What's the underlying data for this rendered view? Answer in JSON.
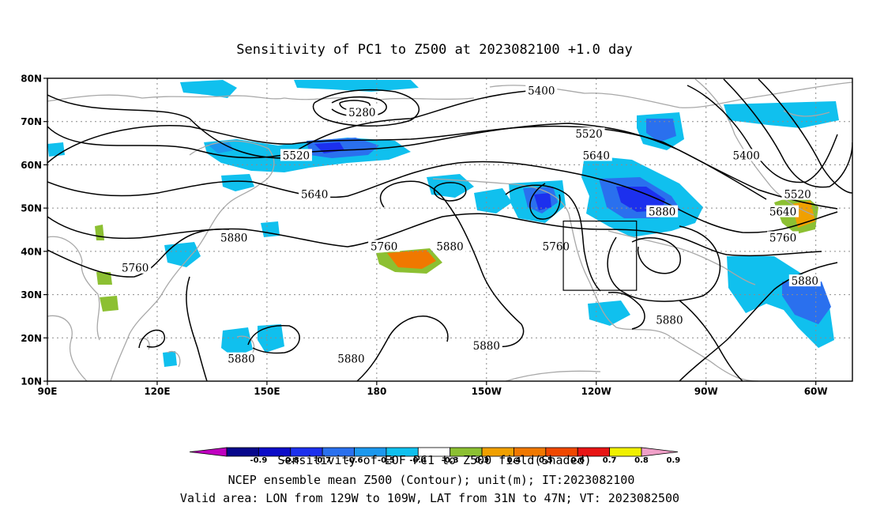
{
  "title": "Sensitivity of PC1 to Z500 at 2023082100 +1.0 day",
  "colors": {
    "coast": "#a8a8a8",
    "contour": "#000000",
    "grid": "#8c8c8c"
  },
  "map": {
    "lon_range": [
      90,
      310
    ],
    "lat_range": [
      10,
      80
    ],
    "lon_ticks": [
      {
        "lon": 90,
        "label": "90E"
      },
      {
        "lon": 120,
        "label": "120E"
      },
      {
        "lon": 150,
        "label": "150E"
      },
      {
        "lon": 180,
        "label": "180"
      },
      {
        "lon": 210,
        "label": "150W"
      },
      {
        "lon": 240,
        "label": "120W"
      },
      {
        "lon": 270,
        "label": "90W"
      },
      {
        "lon": 300,
        "label": "60W"
      }
    ],
    "lat_ticks": [
      {
        "lat": 80,
        "label": "80N"
      },
      {
        "lat": 70,
        "label": "70N"
      },
      {
        "lat": 60,
        "label": "60N"
      },
      {
        "lat": 50,
        "label": "50N"
      },
      {
        "lat": 40,
        "label": "40N"
      },
      {
        "lat": 30,
        "label": "30N"
      },
      {
        "lat": 20,
        "label": "20N"
      },
      {
        "lat": 10,
        "label": "10N"
      }
    ],
    "contour_labels": [
      {
        "text": "5400",
        "lon": 225,
        "lat": 77
      },
      {
        "text": "5280",
        "lon": 176,
        "lat": 72
      },
      {
        "text": "5520",
        "lon": 238,
        "lat": 67
      },
      {
        "text": "5520",
        "lon": 158,
        "lat": 62
      },
      {
        "text": "5640",
        "lon": 240,
        "lat": 62
      },
      {
        "text": "5400",
        "lon": 281,
        "lat": 62
      },
      {
        "text": "5640",
        "lon": 163,
        "lat": 53
      },
      {
        "text": "5520",
        "lon": 295,
        "lat": 53
      },
      {
        "text": "5880",
        "lon": 258,
        "lat": 49
      },
      {
        "text": "5640",
        "lon": 291,
        "lat": 49
      },
      {
        "text": "5880",
        "lon": 141,
        "lat": 43
      },
      {
        "text": "5760",
        "lon": 182,
        "lat": 41
      },
      {
        "text": "5880",
        "lon": 200,
        "lat": 41
      },
      {
        "text": "5760",
        "lon": 229,
        "lat": 41
      },
      {
        "text": "5760",
        "lon": 291,
        "lat": 43
      },
      {
        "text": "5760",
        "lon": 114,
        "lat": 36
      },
      {
        "text": "5880",
        "lon": 297,
        "lat": 33
      },
      {
        "text": "5880",
        "lon": 260,
        "lat": 24
      },
      {
        "text": "5880",
        "lon": 143,
        "lat": 15
      },
      {
        "text": "5880",
        "lon": 173,
        "lat": 15
      },
      {
        "text": "5880",
        "lon": 210,
        "lat": 18
      }
    ],
    "valid_box": {
      "lon_min": 231,
      "lon_max": 251,
      "lat_min": 31,
      "lat_max": 47
    }
  },
  "colorbar": {
    "colors": [
      "#c000c0",
      "#08088c",
      "#0c0cc8",
      "#1c30ee",
      "#2a70ee",
      "#1c98ee",
      "#10c0ee",
      "#ffffff",
      "#8cc032",
      "#f0a000",
      "#f07800",
      "#f04800",
      "#e81414",
      "#f0f000",
      "#f0a0c8"
    ],
    "labels": [
      "-0.9",
      "-0.8",
      "-0.7",
      "-0.6",
      "-0.5",
      "-0.4",
      "-0.3",
      "0.3",
      "0.4",
      "0.5",
      "0.6",
      "0.7",
      "0.8",
      "0.9"
    ]
  },
  "footer": {
    "line1": "Sensitivity of EOF PC1 to Z500 field(Shaded)",
    "line2": "NCEP ensemble mean Z500 (Contour); unit(m); IT:2023082100",
    "line3": "Valid area: LON from 129W to 109W, LAT from 31N to 47N; VT: 2023082500"
  }
}
